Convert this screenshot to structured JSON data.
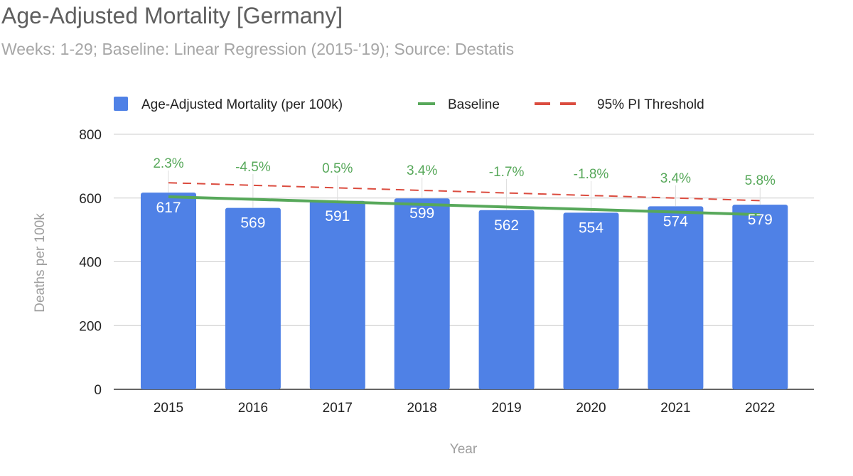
{
  "chart_data": {
    "type": "bar",
    "title": "Age-Adjusted Mortality [Germany]",
    "subtitle": "Weeks: 1-29; Baseline: Linear Regression (2015-'19); Source: Destatis",
    "xlabel": "Year",
    "ylabel": "Deaths per 100k",
    "ylim": [
      0,
      800
    ],
    "yticks": [
      0,
      200,
      400,
      600,
      800
    ],
    "grid": true,
    "legend_position": "top",
    "categories": [
      "2015",
      "2016",
      "2017",
      "2018",
      "2019",
      "2020",
      "2021",
      "2022"
    ],
    "series": [
      {
        "name": "Age-Adjusted Mortality (per 100k)",
        "kind": "bar",
        "color": "#4f81e6",
        "values": [
          617,
          569,
          591,
          599,
          562,
          554,
          574,
          579
        ]
      },
      {
        "name": "Baseline",
        "kind": "line",
        "color": "#57a85a",
        "values": [
          604,
          596,
          588,
          580,
          572,
          564,
          556,
          548
        ]
      },
      {
        "name": "95% PI Threshold",
        "kind": "dashed-line",
        "color": "#db4c3f",
        "values": [
          648,
          640,
          632,
          624,
          616,
          608,
          600,
          592
        ]
      }
    ],
    "annotations": [
      "2.3%",
      "-4.5%",
      "0.5%",
      "3.4%",
      "-1.7%",
      "-1.8%",
      "3.4%",
      "5.8%"
    ]
  }
}
